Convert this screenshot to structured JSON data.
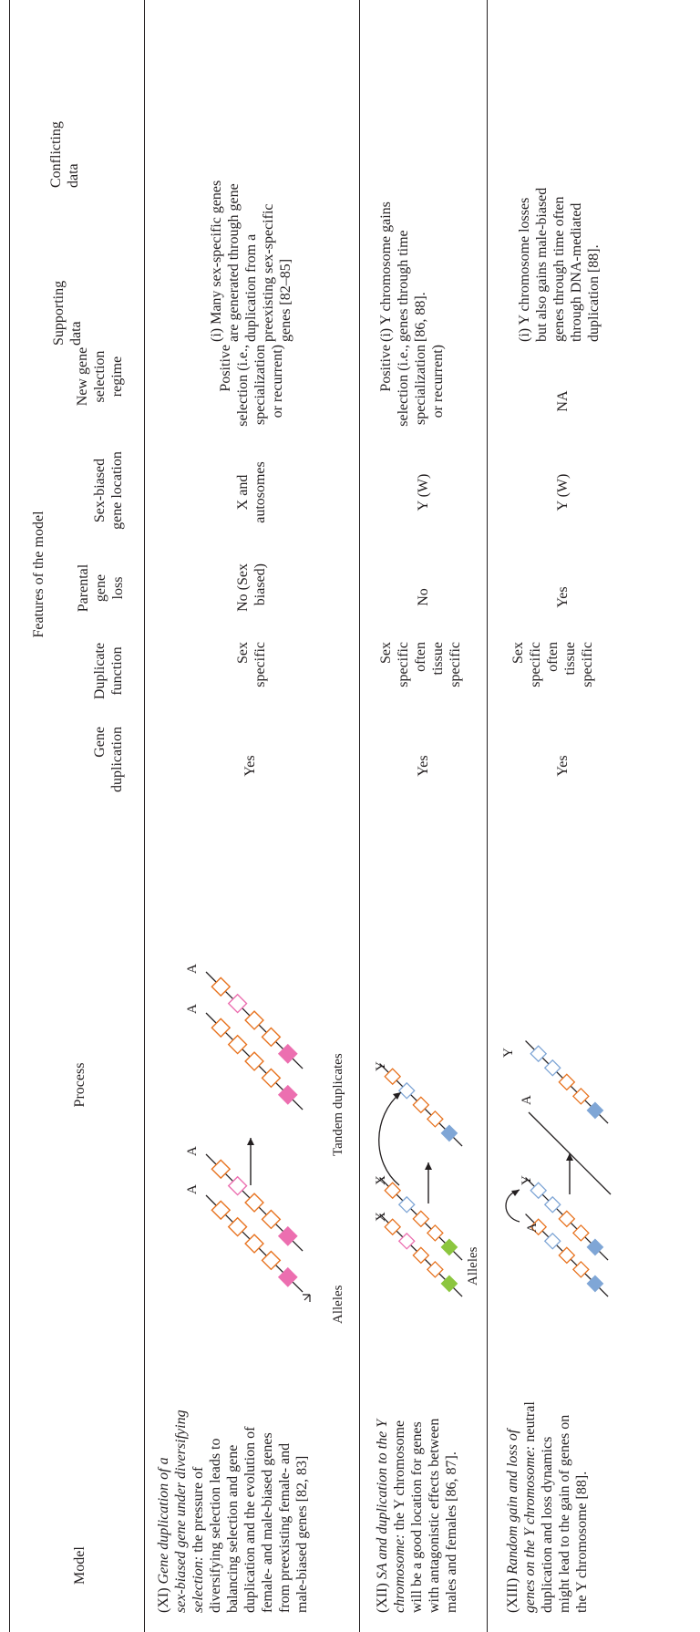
{
  "header": {
    "model": "Model",
    "process": "Process",
    "features_group": "Features of the model",
    "gene_duplication": "Gene\nduplication",
    "duplicate_function": "Duplicate\nfunction",
    "parental_gene_loss": "Parental\ngene\nloss",
    "sex_biased_location": "Sex-biased\ngene location",
    "new_gene_selection": "New gene\nselection\nregime",
    "supporting_data": "Supporting\ndata",
    "conflicting_data": "Conflicting\ndata"
  },
  "rows": [
    {
      "model_title": "(XI) ",
      "model_title_italic": "Gene duplication of a\nsex-biased gene under diversifying\nselection:",
      "model_text": " the pressure of\ndiversifying selection leads to\nbalancing selection and gene\nduplication and the evolution of\nfemale- and male-biased genes\nfrom preexisting female- and\nmale-biased genes [82, 83]",
      "gene_duplication": "Yes",
      "duplicate_function": "Sex\nspecific",
      "parental_gene_loss": "No (Sex\nbiased)",
      "sex_biased_location": "X and\nautosomes",
      "new_gene_selection": "Positive\nselection (i.e.,\nspecialization\nor recurrent)",
      "supporting_data": "(i) Many sex-specific genes\nare generated through gene\nduplication from a\npreexisting sex-specific\ngenes [82–85]",
      "conflicting_data": "",
      "figure": {
        "chrom_labels": [
          "A",
          "A",
          "A",
          "A"
        ],
        "caption_left": "Alleles",
        "caption_right": "Tandem duplicates"
      }
    },
    {
      "model_title": "(XII) ",
      "model_title_italic": "SA and duplication to the Y\nchromosome:",
      "model_text": " the Y chromosome\nwill be a good location for genes\nwith antagonistic effects between\nmales and females [86, 87].",
      "gene_duplication": "Yes",
      "duplicate_function": "Sex\nspecific\noften\ntissue\nspecific",
      "parental_gene_loss": "No",
      "sex_biased_location": "Y (W)",
      "new_gene_selection": "Positive\nselection (i.e.,\nspecialization\nor recurrent)",
      "supporting_data": "(i) Y chromosome gains\ngenes through time\n[86, 88].",
      "conflicting_data": "",
      "figure": {
        "chrom_labels": [
          "X",
          "X",
          "Y"
        ],
        "caption_left": "Alleles"
      }
    },
    {
      "model_title": "(XIII) ",
      "model_title_italic": "Random gain and loss of\ngenes on the Y chromosome:",
      "model_text": " neutral\nduplication and loss dynamics\nmight lead to the gain of genes on\nthe Y chromosome [88].",
      "gene_duplication": "Yes",
      "duplicate_function": "Sex\nspecific\noften\ntissue\nspecific",
      "parental_gene_loss": "Yes",
      "sex_biased_location": "Y (W)",
      "new_gene_selection": "NA",
      "supporting_data": "(i) Y chromosome losses\nbut also gains male-biased\ngenes through time often\nthrough DNA-mediated\nduplication [88].",
      "conflicting_data": "",
      "figure": {
        "chrom_labels": [
          "A",
          "Y",
          "A",
          "Y"
        ]
      }
    }
  ],
  "colors": {
    "orange": "#e8731f",
    "pink": "#ec6fb0",
    "blue": "#7fa6d6",
    "green": "#8cc63f",
    "ink": "#231f20"
  }
}
